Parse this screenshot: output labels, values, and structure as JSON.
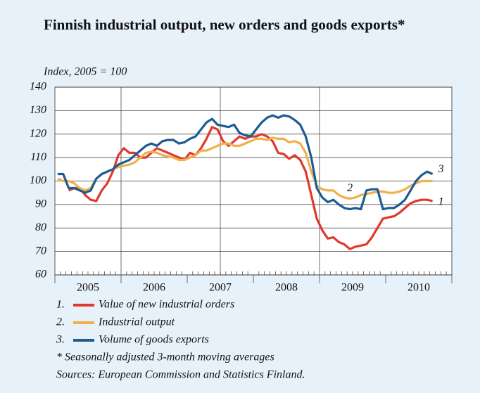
{
  "chart_data": {
    "type": "line",
    "title": "Finnish industrial output, new orders and goods exports*",
    "subtitle": "Index, 2005 = 100",
    "categories": [
      null,
      null,
      null,
      null,
      null,
      "2005",
      null,
      null,
      null,
      null,
      null,
      null,
      null,
      null,
      null,
      null,
      null,
      "2006",
      null,
      null,
      null,
      null,
      null,
      null,
      null,
      null,
      null,
      null,
      null,
      "2007",
      null,
      null,
      null,
      null,
      null,
      null,
      null,
      null,
      null,
      null,
      null,
      "2008",
      null,
      null,
      null,
      null,
      null,
      null,
      null,
      null,
      null,
      null,
      null,
      "2009",
      null,
      null,
      null,
      null,
      null,
      null,
      null,
      null,
      null,
      null,
      null,
      "2010",
      null,
      null,
      null,
      null,
      null,
      null
    ],
    "ylim": [
      60,
      140
    ],
    "yticks": [
      60,
      70,
      80,
      90,
      100,
      110,
      120,
      130,
      140
    ],
    "grid": true,
    "series": [
      {
        "name": "Value of new industrial orders",
        "legend_label": "1.",
        "line_label": "1",
        "color": "#e2382c",
        "values": [
          null,
          null,
          96,
          97,
          97,
          94,
          92,
          91.5,
          96,
          99,
          104,
          111,
          114,
          112,
          112,
          110,
          110,
          112,
          114,
          113,
          112,
          111,
          110,
          109,
          112,
          111,
          114,
          118,
          123,
          122,
          117,
          115,
          117,
          119,
          118,
          119,
          119,
          120,
          119,
          117,
          112,
          111.5,
          109.5,
          111,
          109,
          104,
          94,
          84,
          79,
          75.5,
          76,
          74,
          73,
          71,
          72,
          72.5,
          73,
          76,
          80,
          84,
          84.5,
          85,
          86.5,
          88.5,
          90.5,
          91.5,
          92,
          92,
          91.5,
          null,
          null,
          null
        ]
      },
      {
        "name": "Industrial output",
        "legend_label": "2.",
        "line_label": "2",
        "color": "#f0b04a",
        "values": [
          101,
          100,
          100,
          99,
          97,
          96,
          97,
          101,
          103,
          104,
          105,
          106,
          106.5,
          107,
          108,
          110,
          112,
          112.5,
          112,
          111,
          110.5,
          110,
          109,
          109,
          110,
          111,
          113,
          113,
          114,
          115,
          116,
          116,
          115,
          115,
          116,
          117,
          118,
          118,
          117.5,
          118.5,
          118,
          118,
          116.5,
          117,
          116,
          112,
          104,
          98,
          96.5,
          96,
          96,
          94,
          93,
          92.5,
          93,
          94,
          94.5,
          95,
          95.5,
          95.5,
          95,
          95,
          95.5,
          96.5,
          98,
          99,
          100,
          100,
          100,
          null,
          null,
          null
        ]
      },
      {
        "name": "Volume of goods exports",
        "legend_label": "3.",
        "line_label": "3",
        "color": "#1c5c92",
        "values": [
          103,
          103,
          97,
          97,
          96,
          95,
          96,
          101,
          103,
          104,
          105,
          107,
          108,
          109,
          111,
          113,
          115,
          116,
          115,
          117,
          117.5,
          117.5,
          116,
          116.5,
          118,
          119,
          122,
          125,
          126.5,
          124,
          123.5,
          123,
          124,
          120.5,
          119.5,
          119,
          122,
          125,
          127,
          128,
          127,
          128,
          127.5,
          126,
          124,
          119,
          110,
          97,
          93,
          91,
          92,
          90,
          88.5,
          88,
          88.5,
          88,
          96,
          96.5,
          96.5,
          88,
          88.5,
          88.5,
          90,
          92,
          96,
          100,
          102.5,
          104,
          103,
          null,
          null,
          null
        ]
      }
    ],
    "notes": [
      "* Seasonally adjusted 3-month moving averages",
      "Sources: European Commission and Statistics Finland."
    ]
  }
}
